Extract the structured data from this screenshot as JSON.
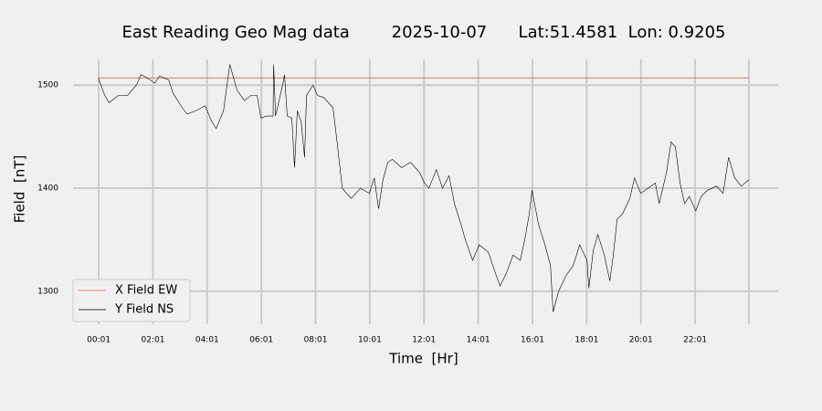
{
  "chart_data": {
    "type": "line",
    "title": "East Reading Geo Mag data        2025-10-07      Lat:51.4581  Lon: 0.9205",
    "x_label": "Time  [Hr]",
    "y_label": "Field  [nT]",
    "xlim": [
      -0.93,
      25.08
    ],
    "ylim": [
      1268,
      1525
    ],
    "xticks": [
      {
        "value": 0.0167,
        "label": "00:01"
      },
      {
        "value": 2.0167,
        "label": "02:01"
      },
      {
        "value": 4.0167,
        "label": "04:01"
      },
      {
        "value": 6.0167,
        "label": "06:01"
      },
      {
        "value": 8.0167,
        "label": "08:01"
      },
      {
        "value": 10.0167,
        "label": "10:01"
      },
      {
        "value": 12.0167,
        "label": "12:01"
      },
      {
        "value": 14.0167,
        "label": "14:01"
      },
      {
        "value": 16.0167,
        "label": "16:01"
      },
      {
        "value": 18.0167,
        "label": "18:01"
      },
      {
        "value": 20.0167,
        "label": "20:01"
      },
      {
        "value": 22.0167,
        "label": "22:01"
      },
      {
        "value": 24.0
      }
    ],
    "yticks": [
      1300,
      1400,
      1500
    ],
    "grid": true,
    "legend": "lower left",
    "series": [
      {
        "name": "X Field EW",
        "color": "#e8604c",
        "x": [
          0.0,
          24.0
        ],
        "values": [
          1507,
          1507
        ]
      },
      {
        "name": "Y Field NS",
        "color": "#000000",
        "x": [
          0.0,
          0.24,
          0.4,
          0.74,
          1.08,
          1.4,
          1.58,
          1.75,
          2.09,
          2.26,
          2.6,
          2.76,
          3.1,
          3.27,
          3.6,
          3.94,
          4.18,
          4.35,
          4.62,
          4.85,
          5.12,
          5.39,
          5.63,
          5.86,
          6.0,
          6.2,
          6.45,
          6.47,
          6.54,
          6.8,
          6.87,
          6.97,
          7.14,
          7.24,
          7.34,
          7.48,
          7.61,
          7.68,
          7.92,
          8.09,
          8.32,
          8.66,
          8.83,
          9.0,
          9.16,
          9.33,
          9.67,
          10.0,
          10.18,
          10.34,
          10.5,
          10.68,
          10.85,
          11.19,
          11.52,
          11.86,
          12.03,
          12.2,
          12.47,
          12.7,
          12.94,
          13.14,
          13.38,
          13.54,
          13.81,
          14.05,
          14.39,
          14.62,
          14.82,
          15.06,
          15.3,
          15.57,
          15.73,
          15.9,
          16.0,
          16.24,
          16.48,
          16.68,
          16.78,
          16.98,
          17.25,
          17.52,
          17.76,
          18.03,
          18.1,
          18.26,
          18.43,
          18.67,
          18.87,
          19.0,
          19.14,
          19.34,
          19.61,
          19.78,
          20.01,
          20.28,
          20.55,
          20.69,
          20.96,
          21.13,
          21.29,
          21.46,
          21.63,
          21.8,
          22.04,
          22.24,
          22.47,
          22.81,
          23.05,
          23.25,
          23.48,
          23.72,
          23.99
        ],
        "values": [
          1507,
          1490,
          1483,
          1490,
          1490,
          1500,
          1510,
          1508,
          1502,
          1509,
          1505,
          1492,
          1478,
          1472,
          1475,
          1480,
          1465,
          1458,
          1475,
          1520,
          1495,
          1485,
          1490,
          1490,
          1468,
          1470,
          1470,
          1520,
          1470,
          1500,
          1510,
          1470,
          1468,
          1420,
          1475,
          1465,
          1430,
          1490,
          1500,
          1490,
          1488,
          1478,
          1440,
          1400,
          1395,
          1390,
          1400,
          1395,
          1410,
          1380,
          1408,
          1425,
          1428,
          1420,
          1425,
          1415,
          1405,
          1400,
          1418,
          1400,
          1412,
          1385,
          1365,
          1350,
          1330,
          1345,
          1338,
          1320,
          1305,
          1318,
          1335,
          1330,
          1350,
          1375,
          1398,
          1365,
          1345,
          1325,
          1280,
          1300,
          1315,
          1325,
          1345,
          1330,
          1303,
          1340,
          1355,
          1335,
          1310,
          1335,
          1370,
          1375,
          1390,
          1410,
          1395,
          1400,
          1405,
          1385,
          1415,
          1445,
          1440,
          1405,
          1385,
          1392,
          1378,
          1392,
          1398,
          1402,
          1395,
          1430,
          1410,
          1402,
          1408
        ]
      }
    ]
  }
}
